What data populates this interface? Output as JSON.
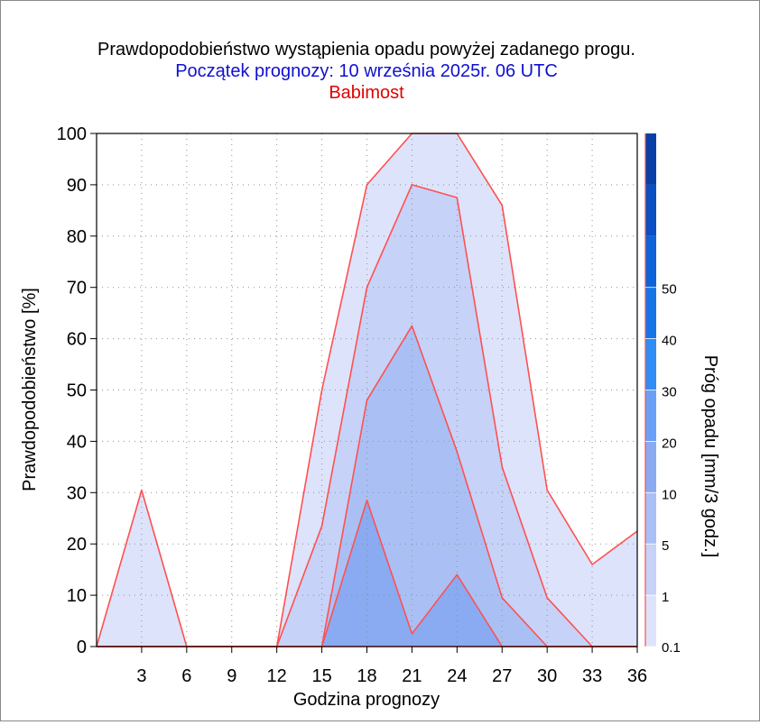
{
  "chart_data": {
    "type": "area",
    "title": "Prawdopodobieństwo wystąpienia opadu powyżej zadanego progu.",
    "subtitle": "Początek prognozy: 10 września 2025r. 06 UTC",
    "location": "Babimost",
    "xlabel": "Godzina prognozy",
    "ylabel": "Prawdopodobieństwo [%]",
    "colorbar_label": "Próg opadu [mm/3 godz.]",
    "xlim": [
      0,
      36
    ],
    "ylim": [
      0,
      100
    ],
    "x_ticks": [
      3,
      6,
      9,
      12,
      15,
      18,
      21,
      24,
      27,
      30,
      33,
      36
    ],
    "y_ticks": [
      0,
      10,
      20,
      30,
      40,
      50,
      60,
      70,
      80,
      90,
      100
    ],
    "grid": true,
    "x": [
      0,
      3,
      6,
      9,
      12,
      15,
      18,
      21,
      24,
      27,
      30,
      33,
      36
    ],
    "series": [
      {
        "name": "0.1",
        "color": "#dde3fb",
        "values": [
          0,
          30.5,
          0,
          0,
          0,
          50,
          90,
          100,
          100,
          86,
          30.5,
          16,
          22.5
        ]
      },
      {
        "name": "1",
        "color": "#c6d2f8",
        "values": [
          0,
          0,
          0,
          0,
          0,
          23.5,
          70,
          90,
          87.5,
          35,
          9.5,
          0,
          0
        ]
      },
      {
        "name": "5",
        "color": "#aac0f5",
        "values": [
          0,
          0,
          0,
          0,
          0,
          0,
          48,
          62.5,
          38,
          9.5,
          0,
          0,
          0
        ]
      },
      {
        "name": "10",
        "color": "#8aaaf2",
        "values": [
          0,
          0,
          0,
          0,
          0,
          0,
          28.5,
          2.5,
          14,
          0,
          0,
          0,
          0
        ]
      },
      {
        "name": "20",
        "color": "#6a9ff7",
        "values": [
          0,
          0,
          0,
          0,
          0,
          0,
          0,
          0,
          0,
          0,
          0,
          0,
          0
        ]
      }
    ],
    "colorbar": {
      "labels": [
        "0.1",
        "1",
        "5",
        "10",
        "20",
        "30",
        "40",
        "50"
      ],
      "colors": [
        "#dde3fb",
        "#c6d2f8",
        "#aac0f5",
        "#8aaaf2",
        "#6a9ff7",
        "#2f8df5",
        "#1675e6",
        "#0e63d8",
        "#0a50c2",
        "#0840a8"
      ],
      "outline_color": "#ff4d4d"
    },
    "colors": {
      "title": "#000000",
      "subtitle": "#1010d0",
      "location": "#e00000",
      "outline": "#ff5050",
      "grid": "#909090"
    }
  }
}
